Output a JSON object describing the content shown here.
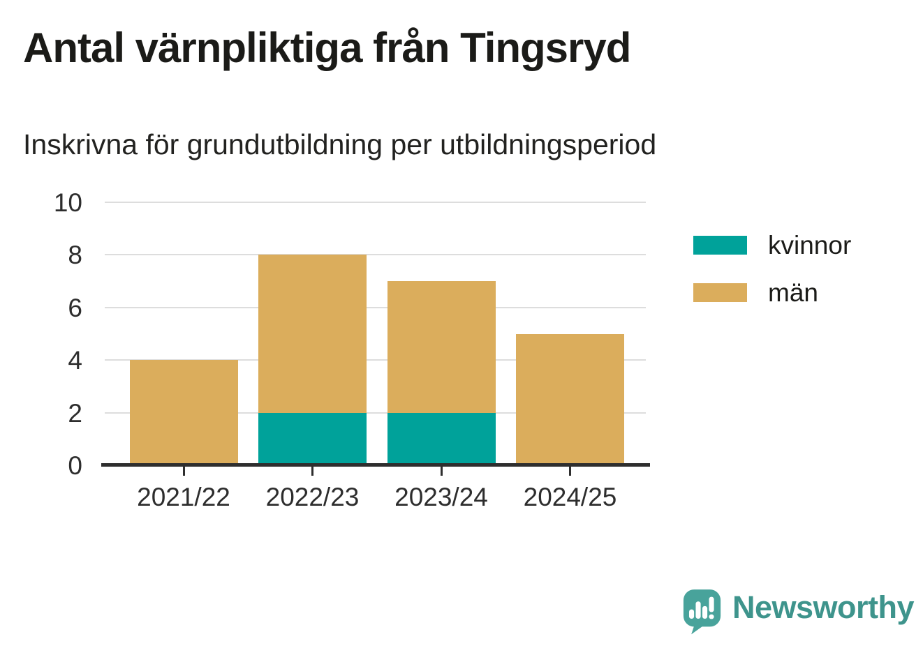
{
  "chart_data": {
    "type": "bar",
    "stacked": true,
    "title": "Antal värnpliktiga från Tingsryd",
    "subtitle": "Inskrivna för grundutbildning per utbildningsperiod",
    "categories": [
      "2021/22",
      "2022/23",
      "2023/24",
      "2024/25"
    ],
    "series": [
      {
        "name": "kvinnor",
        "color": "#00A29A",
        "values": [
          0,
          2,
          2,
          0
        ]
      },
      {
        "name": "män",
        "color": "#DBAD5C",
        "values": [
          4,
          6,
          5,
          5
        ]
      }
    ],
    "xlabel": "",
    "ylabel": "",
    "ylim": [
      0,
      10
    ],
    "yticks": [
      0,
      2,
      4,
      6,
      8,
      10
    ],
    "grid": "horizontal",
    "legend_position": "right",
    "colors": {
      "gridline": "#DDDDDD",
      "axis": "#2E2E2E",
      "text": "#2D2D2D"
    }
  },
  "branding": {
    "name": "Newsworthy",
    "logo_icon": "newsworthy-speech-bubble-chart-icon",
    "text_color": "#3E948C",
    "bubble_color": "#48A39B",
    "bubble_tail_color": "#3C8D86"
  }
}
